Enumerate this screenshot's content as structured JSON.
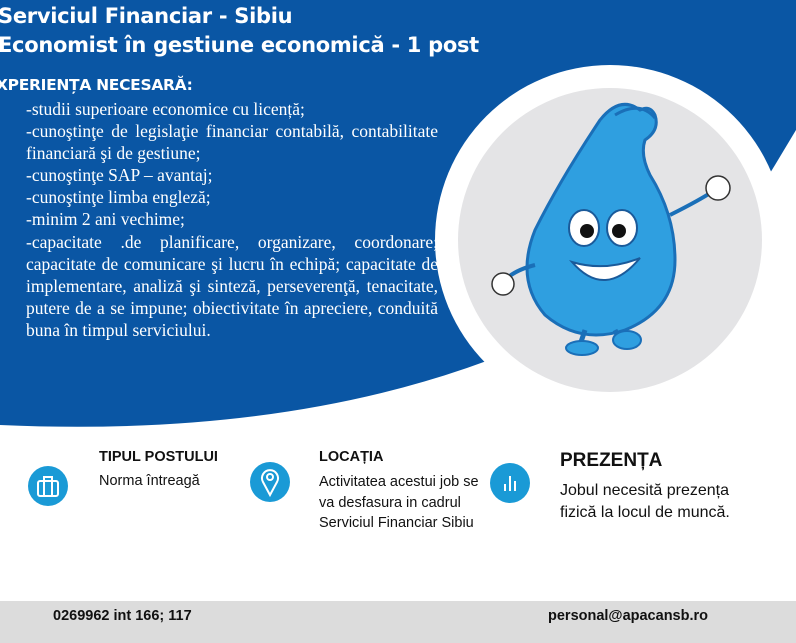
{
  "header": {
    "title_line1": "Serviciul Financiar - Sibiu",
    "title_line2": "Economist în gestiune economică - 1 post"
  },
  "experience": {
    "heading": "XPERIENȚA NECESARĂ:",
    "items": [
      "-studii superioare economice cu licență;",
      "-cunoştinţe de legislaţie financiar contabilă, contabilitate financiară şi de gestiune;",
      "-cunoştinţe SAP – avantaj;",
      "-cunoştinţe limba engleză;",
      "-minim 2 ani vechime;",
      "-capacitate .de planificare, organizare, coordonare; capacitate de comunicare şi lucru în echipă; capacitate de implementare, analiză şi sinteză, perseverenţă, tenacitate, putere de a se impune; obiectivitate în apreciere, conduită buna în timpul serviciului."
    ]
  },
  "info": [
    {
      "icon": "briefcase-icon",
      "heading": "TIPUL POSTULUI",
      "text": "Norma întreagă"
    },
    {
      "icon": "location-pin-icon",
      "heading": "LOCAȚIA",
      "text": "Activitatea acestui job se va desfasura in cadrul Serviciul Financiar Sibiu"
    },
    {
      "icon": "bar-chart-icon",
      "heading": "PREZENȚA",
      "text": "Jobul necesită prezența fizică la locul de muncă."
    }
  ],
  "footer": {
    "phone": "0269962 int 166; 117",
    "email": "personal@apacansb.ro"
  },
  "colors": {
    "brand_blue": "#0a56a4",
    "icon_blue": "#1a9ad6",
    "footer_gray": "#dcdcdc"
  }
}
